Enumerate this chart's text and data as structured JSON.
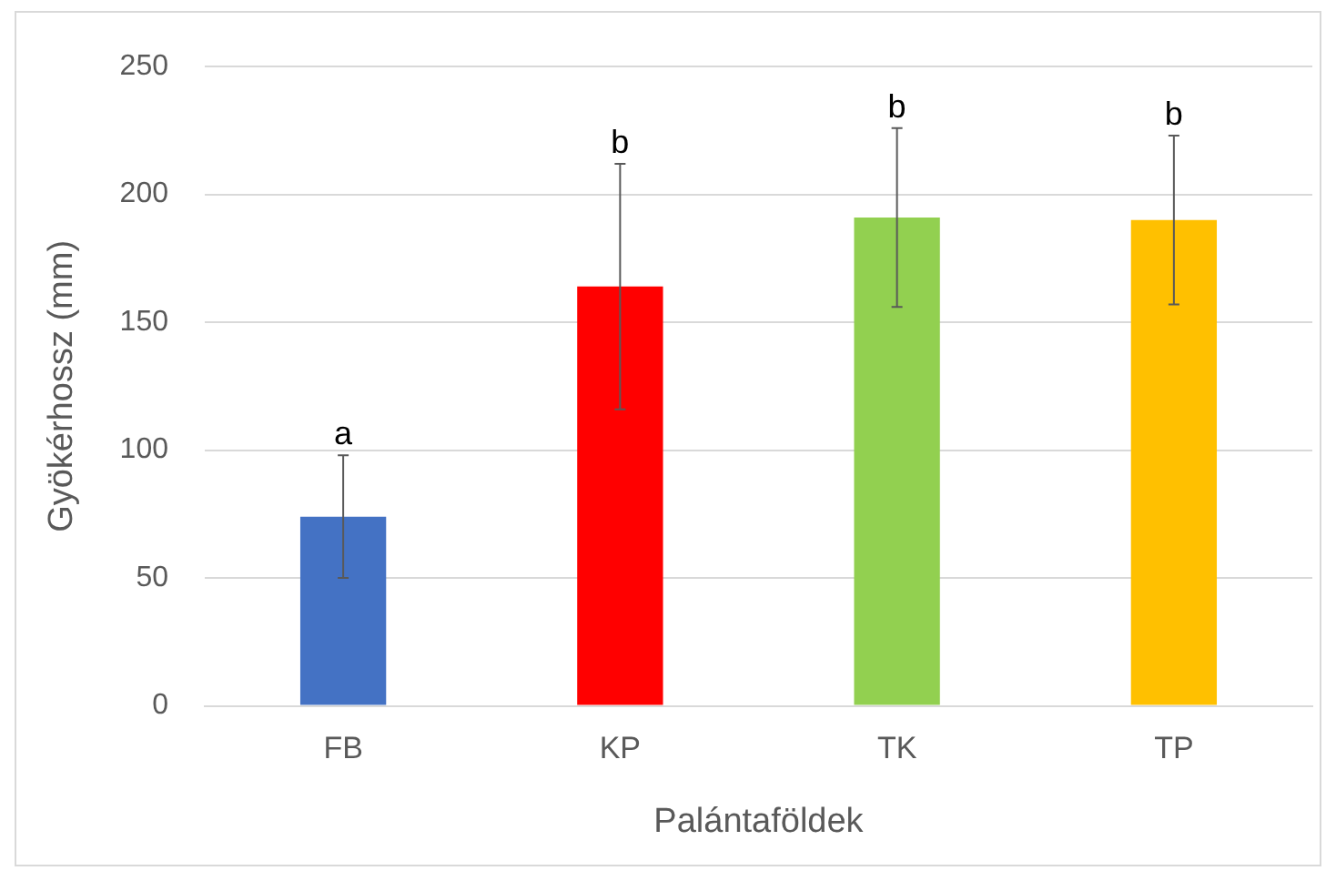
{
  "chart_data": {
    "type": "bar",
    "categories": [
      "FB",
      "KP",
      "TK",
      "TP"
    ],
    "values": [
      74,
      164,
      191,
      190
    ],
    "colors": [
      "#4472c4",
      "#ff0000",
      "#92d050",
      "#ffc000"
    ],
    "errors": [
      24,
      48,
      35,
      33
    ],
    "xlabel": "Palántaföldek",
    "ylabel": "Gyökérhossz (mm)",
    "ylim": [
      0,
      250
    ],
    "yticks": [
      0,
      50,
      100,
      150,
      200,
      250
    ],
    "grid": "y",
    "legend": false,
    "annotations": [
      {
        "text": "a",
        "x": "FB",
        "y": 98
      },
      {
        "text": "b",
        "x": "KP",
        "y": 212
      },
      {
        "text": "b",
        "x": "TK",
        "y": 226
      },
      {
        "text": "b",
        "x": "TP",
        "y": 223
      }
    ]
  }
}
